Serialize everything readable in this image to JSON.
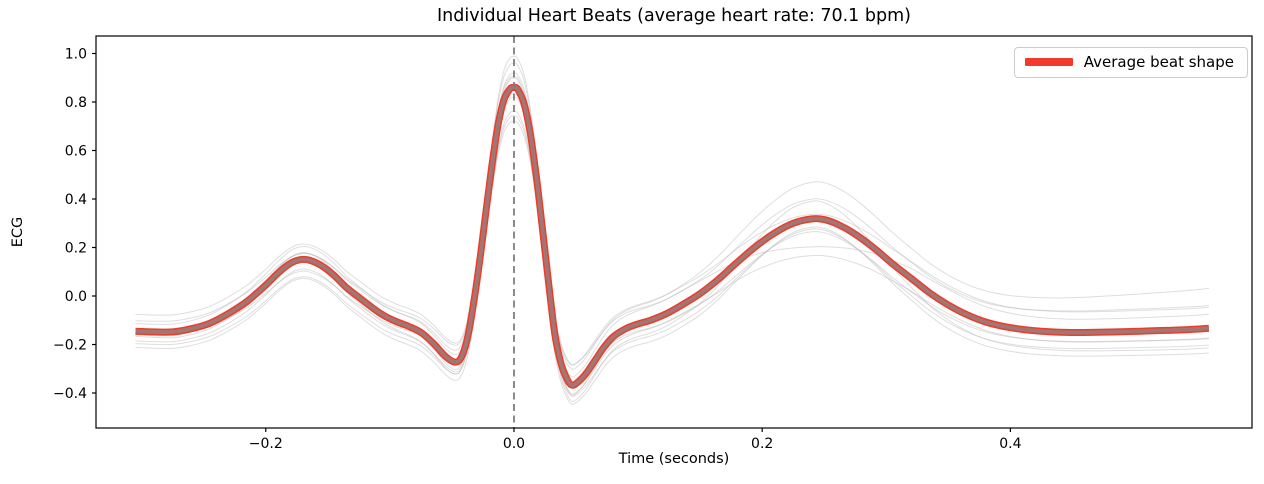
{
  "chart_data": {
    "type": "line",
    "title": "Individual Heart Beats (average heart rate: 70.1 bpm)",
    "xlabel": "Time (seconds)",
    "ylabel": "ECG",
    "xlim": [
      -0.3368,
      0.5947
    ],
    "ylim": [
      -0.5443,
      1.0722
    ],
    "xticks": [
      -0.2,
      0.0,
      0.2,
      0.4
    ],
    "xtick_labels": [
      "−0.2",
      "0.0",
      "0.2",
      "0.4"
    ],
    "yticks": [
      1.0,
      0.8,
      0.6,
      0.4,
      0.2,
      0.0,
      -0.2,
      -0.4
    ],
    "ytick_labels": [
      "1.0",
      "0.8",
      "0.6",
      "0.4",
      "0.2",
      "0.0",
      "−0.2",
      "−0.4"
    ],
    "grid": false,
    "vline_x": 0.0,
    "legend": {
      "position": "upper right",
      "entries": [
        {
          "label": "Average beat shape",
          "color": "#f03b2c"
        }
      ]
    },
    "colors": {
      "average": "#f03b2c",
      "average_core": "#8f8683",
      "individual": "#b6b6b6",
      "vline": "#7f7f7f",
      "axis": "#000000",
      "legend_border": "#cccccc"
    },
    "average_beat": {
      "t": [
        -0.305,
        -0.29,
        -0.275,
        -0.26,
        -0.245,
        -0.23,
        -0.215,
        -0.2,
        -0.19,
        -0.18,
        -0.172,
        -0.165,
        -0.155,
        -0.145,
        -0.135,
        -0.125,
        -0.115,
        -0.105,
        -0.095,
        -0.085,
        -0.075,
        -0.065,
        -0.055,
        -0.048,
        -0.043,
        -0.038,
        -0.033,
        -0.028,
        -0.023,
        -0.018,
        -0.013,
        -0.008,
        -0.003,
        0.0,
        0.003,
        0.008,
        0.013,
        0.018,
        0.023,
        0.028,
        0.033,
        0.038,
        0.043,
        0.047,
        0.052,
        0.058,
        0.065,
        0.072,
        0.08,
        0.09,
        0.1,
        0.11,
        0.122,
        0.135,
        0.15,
        0.165,
        0.18,
        0.195,
        0.21,
        0.225,
        0.24,
        0.25,
        0.262,
        0.275,
        0.29,
        0.305,
        0.32,
        0.335,
        0.35,
        0.365,
        0.38,
        0.395,
        0.41,
        0.425,
        0.445,
        0.465,
        0.485,
        0.505,
        0.525,
        0.545,
        0.56
      ],
      "ecg": [
        -0.145,
        -0.148,
        -0.148,
        -0.135,
        -0.112,
        -0.072,
        -0.022,
        0.045,
        0.095,
        0.135,
        0.15,
        0.148,
        0.125,
        0.085,
        0.035,
        -0.005,
        -0.045,
        -0.08,
        -0.105,
        -0.125,
        -0.15,
        -0.195,
        -0.25,
        -0.272,
        -0.258,
        -0.185,
        -0.045,
        0.13,
        0.33,
        0.53,
        0.7,
        0.81,
        0.855,
        0.86,
        0.853,
        0.795,
        0.675,
        0.495,
        0.275,
        0.05,
        -0.16,
        -0.28,
        -0.345,
        -0.368,
        -0.353,
        -0.32,
        -0.268,
        -0.215,
        -0.168,
        -0.135,
        -0.115,
        -0.1,
        -0.075,
        -0.038,
        0.01,
        0.07,
        0.14,
        0.205,
        0.26,
        0.3,
        0.318,
        0.315,
        0.293,
        0.255,
        0.198,
        0.133,
        0.073,
        0.013,
        -0.037,
        -0.077,
        -0.107,
        -0.126,
        -0.138,
        -0.145,
        -0.15,
        -0.15,
        -0.148,
        -0.145,
        -0.142,
        -0.138,
        -0.133
      ]
    },
    "individual_beats": {
      "count": 10,
      "variations": [
        {
          "amp": 1.14,
          "offset": 0.005,
          "drift": 0.01,
          "t_wave_amp": -0.2
        },
        {
          "amp": 1.0,
          "offset": 0.0,
          "drift": 0.19,
          "t_wave_amp": 0.15
        },
        {
          "amp": 0.88,
          "offset": -0.025,
          "drift": -0.04,
          "t_wave_amp": 0.1
        },
        {
          "amp": 1.06,
          "offset": 0.04,
          "drift": 0.03,
          "t_wave_amp": -0.6
        },
        {
          "amp": 0.94,
          "offset": -0.06,
          "drift": -0.02,
          "t_wave_amp": 0.15
        },
        {
          "amp": 0.98,
          "offset": -0.07,
          "drift": -0.04,
          "t_wave_amp": 0.2
        },
        {
          "amp": 0.97,
          "offset": 0.065,
          "drift": 0.02,
          "t_wave_amp": -0.15
        },
        {
          "amp": 1.08,
          "offset": -0.01,
          "drift": -0.07,
          "t_wave_amp": 0.3
        },
        {
          "amp": 0.91,
          "offset": 0.03,
          "drift": 0.06,
          "t_wave_amp": 0.15
        },
        {
          "amp": 1.0,
          "offset": -0.04,
          "drift": 0.0,
          "t_wave_amp": -0.35
        }
      ]
    }
  }
}
